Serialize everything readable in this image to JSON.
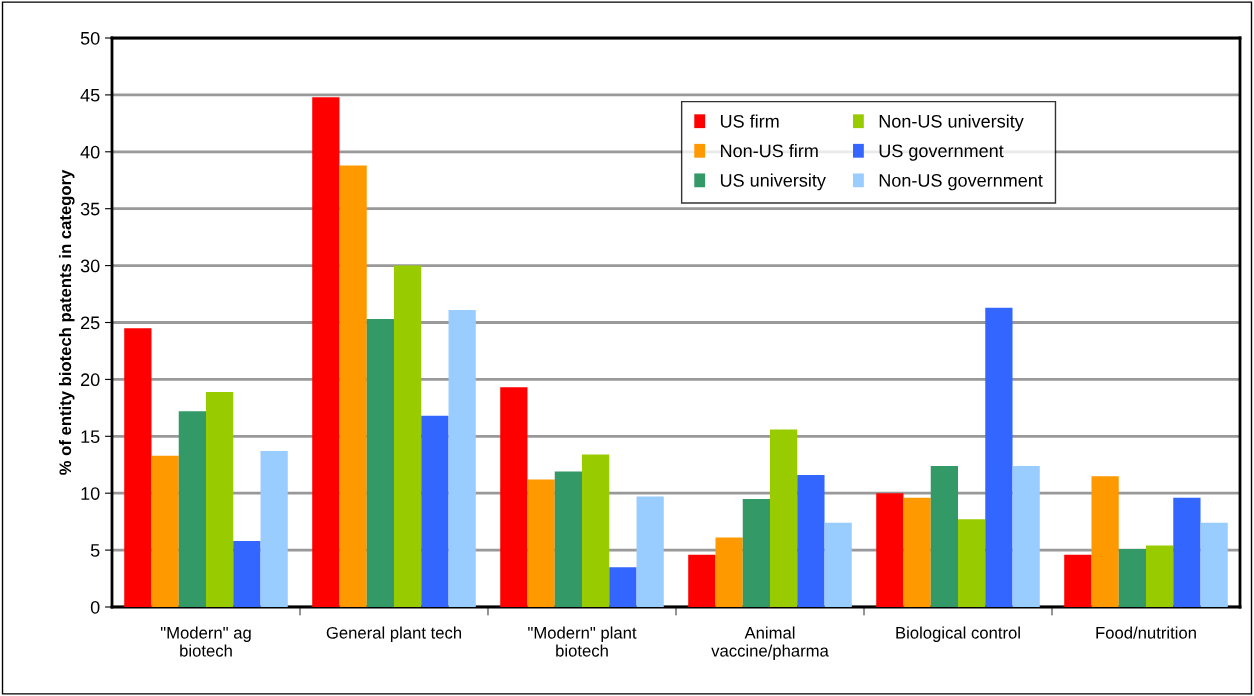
{
  "chart_data": {
    "type": "bar",
    "ylabel": "% of entity biotech patents in category",
    "categories": [
      "\"Modern\" ag\nbiotech",
      "General plant tech",
      "\"Modern\" plant\nbiotech",
      "Animal\nvaccine/pharma",
      "Biological control",
      "Food/nutrition"
    ],
    "series": [
      {
        "name": "US firm",
        "color": "#ff0000",
        "values": [
          24.5,
          44.8,
          19.3,
          4.6,
          10.0,
          4.6
        ]
      },
      {
        "name": "Non-US firm",
        "color": "#ff9900",
        "values": [
          13.3,
          38.8,
          11.2,
          6.1,
          9.6,
          11.5
        ]
      },
      {
        "name": "US university",
        "color": "#339966",
        "values": [
          17.2,
          25.3,
          11.9,
          9.5,
          12.4,
          5.1
        ]
      },
      {
        "name": "Non-US university",
        "color": "#99cc00",
        "values": [
          18.9,
          30.0,
          13.4,
          15.6,
          7.7,
          5.4
        ]
      },
      {
        "name": "US government",
        "color": "#3366ff",
        "values": [
          5.8,
          16.8,
          3.5,
          11.6,
          26.3,
          9.6
        ]
      },
      {
        "name": "Non-US government",
        "color": "#99ccff",
        "values": [
          13.7,
          26.1,
          9.7,
          7.4,
          12.4,
          7.4
        ]
      }
    ],
    "ylim": [
      0,
      50
    ],
    "yticks": [
      0,
      5,
      10,
      15,
      20,
      25,
      30,
      35,
      40,
      45,
      50
    ],
    "grid": "y",
    "legend": "top right"
  }
}
